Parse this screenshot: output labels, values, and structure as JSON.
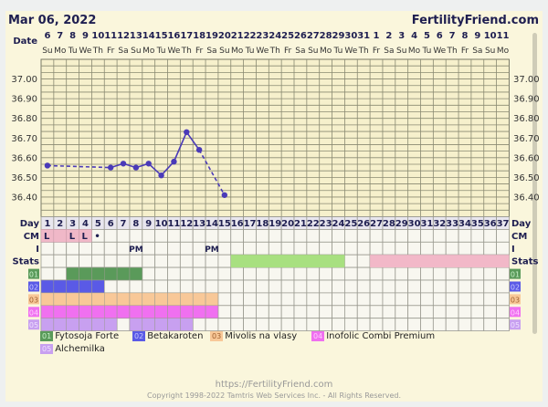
{
  "header": {
    "date": "Mar 06, 2022",
    "brand": "FertilityFriend.com"
  },
  "row_labels": {
    "date": "Date",
    "day": "Day",
    "cm": "CM",
    "i": "I",
    "stats": "Stats"
  },
  "dates": [
    "6",
    "7",
    "8",
    "9",
    "10",
    "11",
    "12",
    "13",
    "14",
    "15",
    "16",
    "17",
    "18",
    "19",
    "20",
    "21",
    "22",
    "23",
    "24",
    "25",
    "26",
    "27",
    "28",
    "29",
    "30",
    "31",
    "1",
    "2",
    "3",
    "4",
    "5",
    "6",
    "7",
    "8",
    "9",
    "10",
    "11"
  ],
  "weekdays": [
    "Su",
    "Mo",
    "Tu",
    "We",
    "Th",
    "Fr",
    "Sa",
    "Su",
    "Mo",
    "Tu",
    "We",
    "Th",
    "Fr",
    "Sa",
    "Su",
    "Mo",
    "Tu",
    "We",
    "Th",
    "Fr",
    "Sa",
    "Su",
    "Mo",
    "Tu",
    "We",
    "Th",
    "Fr",
    "Sa",
    "Su",
    "Mo",
    "Tu",
    "We",
    "Th",
    "Fr",
    "Sa",
    "Su",
    "Mo"
  ],
  "temp_axis": {
    "min": 36.3,
    "max": 37.1,
    "ticks": [
      "37.00",
      "36.90",
      "36.80",
      "36.70",
      "36.60",
      "36.50",
      "36.40"
    ]
  },
  "temperatures": [
    {
      "day": 1,
      "temp": 36.56
    },
    {
      "day": 6,
      "temp": 36.55
    },
    {
      "day": 7,
      "temp": 36.57
    },
    {
      "day": 8,
      "temp": 36.55
    },
    {
      "day": 9,
      "temp": 36.57
    },
    {
      "day": 10,
      "temp": 36.51
    },
    {
      "day": 11,
      "temp": 36.58
    },
    {
      "day": 12,
      "temp": 36.73
    },
    {
      "day": 13,
      "temp": 36.64
    },
    {
      "day": 15,
      "temp": 36.41
    }
  ],
  "cm": [
    {
      "day": 1,
      "value": "L"
    },
    {
      "day": 2,
      "value": ""
    },
    {
      "day": 3,
      "value": "L"
    },
    {
      "day": 4,
      "value": "L"
    },
    {
      "day": 5,
      "value": "•",
      "plain": true
    }
  ],
  "intercourse": [
    {
      "day": 8,
      "value": "PM"
    },
    {
      "day": 14,
      "value": "PM"
    }
  ],
  "stats": [
    {
      "from": 16,
      "to": 24,
      "color": "#a8e080"
    },
    {
      "from": 27,
      "to": 37,
      "color": "#f2b8c8"
    }
  ],
  "supplements": [
    {
      "code": "01",
      "name": "Fytosoja Forte",
      "color": "#5a9a5a",
      "code_color": "#c8f0c8",
      "ranges": [
        [
          3,
          8
        ]
      ]
    },
    {
      "code": "02",
      "name": "Betakaroten",
      "color": "#5a5ae6",
      "code_color": "#c8c8ff",
      "ranges": [
        [
          1,
          5
        ]
      ]
    },
    {
      "code": "03",
      "name": "Mivolis na vlasy",
      "color": "#f8c898",
      "code_color": "#a06030",
      "ranges": [
        [
          1,
          14
        ]
      ]
    },
    {
      "code": "04",
      "name": "Inofolic Combi Premium",
      "color": "#f070f0",
      "code_color": "#ffd0ff",
      "ranges": [
        [
          1,
          14
        ]
      ]
    },
    {
      "code": "05",
      "name": "Alchemilka",
      "color": "#c8a0f0",
      "code_color": "#f0e0ff",
      "ranges": [
        [
          1,
          6
        ],
        [
          8,
          12
        ]
      ]
    }
  ],
  "colors": {
    "line": "#4a3ab8",
    "cm_bg": "#f0b8c8",
    "text": "#1e1e50"
  },
  "footer": {
    "url": "https://FertilityFriend.com",
    "copyright": "Copyright 1998-2022 Tamtris Web Services Inc. - All Rights Reserved."
  }
}
